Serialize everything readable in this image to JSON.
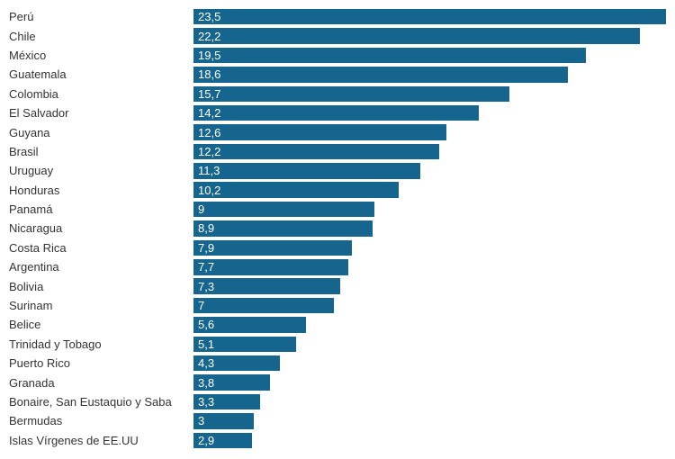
{
  "chart": {
    "type": "bar",
    "orientation": "horizontal",
    "bar_color": "#16658e",
    "value_text_color": "#ffffff",
    "label_text_color": "#333333",
    "label_fontsize": 13,
    "value_fontsize": 13,
    "label_fontweight": "400",
    "value_fontweight": "400",
    "background_color": "#ffffff",
    "bar_height": 17.5,
    "row_height": 21.4,
    "max_value": 23.5,
    "bar_area_width": 525,
    "rows": [
      {
        "label": "Perú",
        "value": 23.5,
        "display": "23,5"
      },
      {
        "label": "Chile",
        "value": 22.2,
        "display": "22,2"
      },
      {
        "label": "México",
        "value": 19.5,
        "display": "19,5"
      },
      {
        "label": "Guatemala",
        "value": 18.6,
        "display": "18,6"
      },
      {
        "label": "Colombia",
        "value": 15.7,
        "display": "15,7"
      },
      {
        "label": "El Salvador",
        "value": 14.2,
        "display": "14,2"
      },
      {
        "label": "Guyana",
        "value": 12.6,
        "display": "12,6"
      },
      {
        "label": "Brasil",
        "value": 12.2,
        "display": "12,2"
      },
      {
        "label": "Uruguay",
        "value": 11.3,
        "display": "11,3"
      },
      {
        "label": "Honduras",
        "value": 10.2,
        "display": "10,2"
      },
      {
        "label": "Panamá",
        "value": 9.0,
        "display": "9"
      },
      {
        "label": "Nicaragua",
        "value": 8.9,
        "display": "8,9"
      },
      {
        "label": "Costa Rica",
        "value": 7.9,
        "display": "7,9"
      },
      {
        "label": "Argentina",
        "value": 7.7,
        "display": "7,7"
      },
      {
        "label": "Bolivia",
        "value": 7.3,
        "display": "7,3"
      },
      {
        "label": "Surinam",
        "value": 7.0,
        "display": "7"
      },
      {
        "label": "Belice",
        "value": 5.6,
        "display": "5,6"
      },
      {
        "label": "Trinidad y Tobago",
        "value": 5.1,
        "display": "5,1"
      },
      {
        "label": "Puerto Rico",
        "value": 4.3,
        "display": "4,3"
      },
      {
        "label": "Granada",
        "value": 3.8,
        "display": "3,8"
      },
      {
        "label": "Bonaire, San Eustaquio y Saba",
        "value": 3.3,
        "display": "3,3"
      },
      {
        "label": "Bermudas",
        "value": 3.0,
        "display": "3"
      },
      {
        "label": "Islas Vírgenes de EE.UU",
        "value": 2.9,
        "display": "2,9"
      }
    ]
  }
}
